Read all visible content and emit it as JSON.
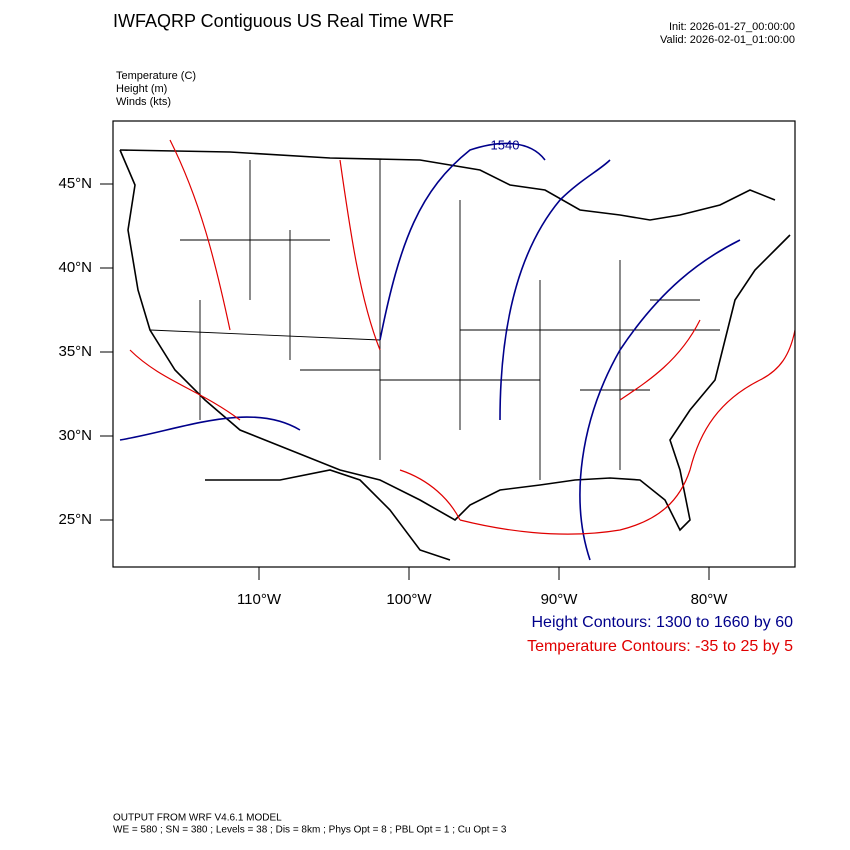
{
  "header": {
    "title": "IWFAQRP Contiguous US Real Time WRF",
    "init": "Init: 2026-01-27_00:00:00",
    "valid": "Valid: 2026-02-01_01:00:00"
  },
  "fields": [
    "Temperature   (C)",
    "Height   (m)",
    "Winds   (kts)"
  ],
  "map": {
    "lat_labels": [
      "45°N",
      "40°N",
      "35°N",
      "30°N",
      "25°N"
    ],
    "lon_labels": [
      "110°W",
      "100°W",
      "90°W",
      "80°W"
    ],
    "contour_labels": [
      "1540"
    ]
  },
  "legend": {
    "height": "Height Contours: 1300 to 1660 by 60",
    "temperature": "Temperature Contours: -35 to 25 by 5"
  },
  "footer": {
    "line1": "OUTPUT FROM WRF V4.6.1 MODEL",
    "line2": "WE = 580 ; SN = 380 ; Levels = 38 ; Dis = 8km ; Phys Opt = 8 ; PBL Opt = 1 ; Cu Opt = 3"
  }
}
